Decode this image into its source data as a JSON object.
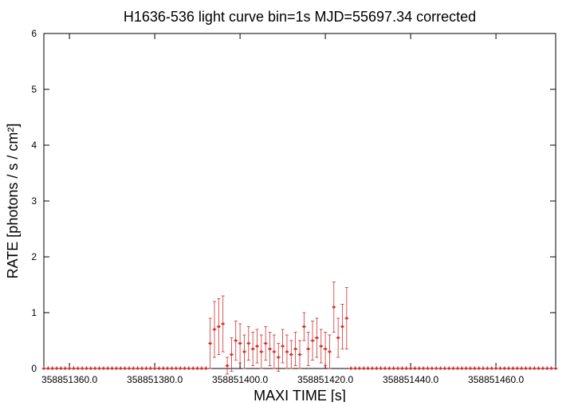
{
  "chart_data": {
    "type": "errorbar",
    "title": "H1636-536 light curve bin=1s MJD=55697.34 corrected",
    "x_label": "MAXI TIME [s]",
    "y_label": "RATE [photons / s / cm²]",
    "color": "#d03030",
    "xlim": [
      358851354,
      358851474
    ],
    "ylim": [
      0,
      6
    ],
    "xticks": [
      {
        "value": 358851360,
        "label": "358851360.0"
      },
      {
        "value": 358851380,
        "label": "358851380.0"
      },
      {
        "value": 358851400,
        "label": "358851400.0"
      },
      {
        "value": 358851420,
        "label": "358851420.0"
      },
      {
        "value": 358851440,
        "label": "358851440.0"
      },
      {
        "value": 358851460,
        "label": "358851460.0"
      }
    ],
    "yticks": [
      0,
      1,
      2,
      3,
      4,
      5,
      6
    ],
    "x": [
      358851354,
      358851355,
      358851356,
      358851357,
      358851358,
      358851359,
      358851360,
      358851361,
      358851362,
      358851363,
      358851364,
      358851365,
      358851366,
      358851367,
      358851368,
      358851369,
      358851370,
      358851371,
      358851372,
      358851373,
      358851374,
      358851375,
      358851376,
      358851377,
      358851378,
      358851379,
      358851380,
      358851381,
      358851382,
      358851383,
      358851384,
      358851385,
      358851386,
      358851387,
      358851388,
      358851389,
      358851390,
      358851391,
      358851392,
      358851393,
      358851394,
      358851395,
      358851396,
      358851397,
      358851398,
      358851399,
      358851400,
      358851401,
      358851402,
      358851403,
      358851404,
      358851405,
      358851406,
      358851407,
      358851408,
      358851409,
      358851410,
      358851411,
      358851412,
      358851413,
      358851414,
      358851415,
      358851416,
      358851417,
      358851418,
      358851419,
      358851420,
      358851421,
      358851422,
      358851423,
      358851424,
      358851425,
      358851426,
      358851427,
      358851428,
      358851429,
      358851430,
      358851431,
      358851432,
      358851433,
      358851434,
      358851435,
      358851436,
      358851437,
      358851438,
      358851439,
      358851440,
      358851441,
      358851442,
      358851443,
      358851444,
      358851445,
      358851446,
      358851447,
      358851448,
      358851449,
      358851450,
      358851451,
      358851452,
      358851453,
      358851454,
      358851455,
      358851456,
      358851457,
      358851458,
      358851459,
      358851460,
      358851461,
      358851462,
      358851463,
      358851464,
      358851465,
      358851466,
      358851467,
      358851468,
      358851469,
      358851470,
      358851471,
      358851472,
      358851473,
      358851474
    ],
    "values": [
      0,
      0,
      0,
      0,
      0,
      0,
      0,
      0,
      0,
      0,
      0,
      0,
      0,
      0,
      0,
      0,
      0,
      0,
      0,
      0,
      0,
      0,
      0,
      0,
      0,
      0,
      0,
      0,
      0,
      0,
      0,
      0,
      0,
      0,
      0,
      0,
      0,
      0,
      0,
      0.45,
      0.7,
      0.75,
      0.8,
      0.05,
      0.25,
      0.5,
      0.45,
      0.3,
      0.45,
      0.35,
      0.4,
      0.3,
      0.45,
      0.35,
      0.3,
      0.2,
      0.4,
      0.3,
      0.25,
      0.35,
      0.25,
      0.75,
      0.35,
      0.5,
      0.55,
      0.4,
      0.35,
      0.3,
      1.1,
      0.55,
      0.75,
      0.9,
      0,
      0,
      0,
      0,
      0,
      0,
      0,
      0,
      0,
      0,
      0,
      0,
      0,
      0,
      0,
      0,
      0,
      0,
      0,
      0,
      0,
      0,
      0,
      0,
      0,
      0,
      0,
      0,
      0,
      0,
      0,
      0,
      0,
      0,
      0,
      0,
      0,
      0,
      0,
      0,
      0,
      0,
      0,
      0,
      0,
      0,
      0,
      0,
      0
    ],
    "errors": [
      0,
      0,
      0,
      0,
      0,
      0,
      0,
      0,
      0,
      0,
      0,
      0,
      0,
      0,
      0,
      0,
      0,
      0,
      0,
      0,
      0,
      0,
      0,
      0,
      0,
      0,
      0,
      0,
      0,
      0,
      0,
      0,
      0,
      0,
      0,
      0,
      0,
      0,
      0,
      0.45,
      0.5,
      0.5,
      0.5,
      0.15,
      0.3,
      0.35,
      0.35,
      0.3,
      0.3,
      0.3,
      0.3,
      0.3,
      0.3,
      0.3,
      0.3,
      0.25,
      0.3,
      0.3,
      0.25,
      0.3,
      0.25,
      0.25,
      0.3,
      0.35,
      0.35,
      0.3,
      0.3,
      0.3,
      0.45,
      0.35,
      0.4,
      0.55,
      0,
      0,
      0,
      0,
      0,
      0,
      0,
      0,
      0,
      0,
      0,
      0,
      0,
      0,
      0,
      0,
      0,
      0,
      0,
      0,
      0,
      0,
      0,
      0,
      0,
      0,
      0,
      0,
      0,
      0,
      0,
      0,
      0,
      0,
      0,
      0,
      0,
      0,
      0,
      0,
      0,
      0,
      0,
      0,
      0,
      0,
      0,
      0,
      0
    ]
  }
}
